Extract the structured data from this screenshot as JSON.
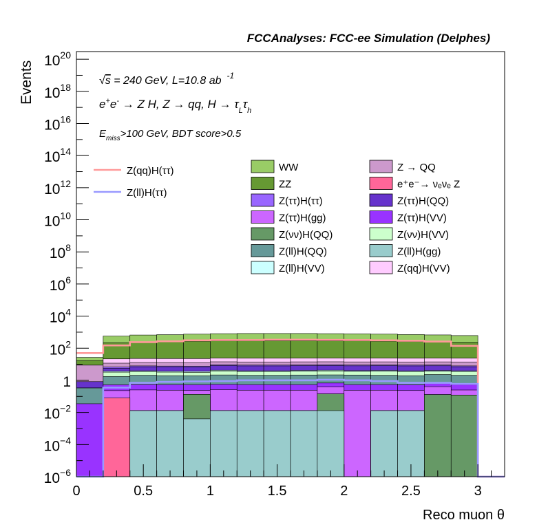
{
  "chart_data": {
    "type": "histogram-stack-log",
    "title": "FCCAnalyses: FCC-ee Simulation (Delphes)",
    "xlabel": "Reco muon θ",
    "ylabel": "Events",
    "xlim": [
      0,
      3.2
    ],
    "ylim": [
      1e-06,
      3e+20
    ],
    "ylog": true,
    "x_ticks": [
      {
        "v": 0,
        "label": "0"
      },
      {
        "v": 0.5,
        "label": "0.5"
      },
      {
        "v": 1,
        "label": "1"
      },
      {
        "v": 1.5,
        "label": "1.5"
      },
      {
        "v": 2,
        "label": "2"
      },
      {
        "v": 2.5,
        "label": "2.5"
      },
      {
        "v": 3,
        "label": "3"
      }
    ],
    "y_ticks": [
      {
        "v": 1e-06,
        "base": "10",
        "exp": "−6"
      },
      {
        "v": 0.0001,
        "base": "10",
        "exp": "−4"
      },
      {
        "v": 0.01,
        "base": "10",
        "exp": "−2"
      },
      {
        "v": 1,
        "base": "1",
        "exp": ""
      },
      {
        "v": 100.0,
        "base": "10",
        "exp": "2"
      },
      {
        "v": 10000.0,
        "base": "10",
        "exp": "4"
      },
      {
        "v": 1000000.0,
        "base": "10",
        "exp": "6"
      },
      {
        "v": 100000000.0,
        "base": "10",
        "exp": "8"
      },
      {
        "v": 10000000000.0,
        "base": "10",
        "exp": "10"
      },
      {
        "v": 1000000000000.0,
        "base": "10",
        "exp": "12"
      },
      {
        "v": 100000000000000.0,
        "base": "10",
        "exp": "14"
      },
      {
        "v": 1e+16,
        "base": "10",
        "exp": "16"
      },
      {
        "v": 1e+18,
        "base": "10",
        "exp": "18"
      },
      {
        "v": 1e+20,
        "base": "10",
        "exp": "20"
      }
    ],
    "annotations": {
      "energy_pre": "√",
      "energy_s": "s",
      "energy_rest": " = 240 GeV, L=10.8 ab",
      "energy_exp": "-1",
      "process_a": "e",
      "process_a_sup": "+",
      "process_b": "e",
      "process_b_sup": "-",
      "process_rest": " → Z H, Z  → qq, H  → τ",
      "process_tau_l_sub": "L",
      "process_tau_h": "τ",
      "process_tau_h_sub": "h",
      "cut_e": "E",
      "cut_sub": "miss",
      "cut_rest": ">100 GeV, BDT score>0.5"
    },
    "bin_edges": [
      0,
      0.2,
      0.4,
      0.6,
      0.8,
      1.0,
      1.2,
      1.4,
      1.6,
      1.8,
      2.0,
      2.2,
      2.4,
      2.6,
      2.8,
      3.0,
      3.2
    ],
    "stack": [
      {
        "name": "Z(ll)H(gg)",
        "color": "#99cccc",
        "values": [
          0,
          0,
          0.013,
          0.013,
          0.004,
          0.013,
          0.013,
          0.013,
          0.013,
          0.013,
          0,
          0.013,
          0.013,
          0,
          0,
          0
        ]
      },
      {
        "name": "Z(νν)H(QQ)",
        "color": "#669966",
        "values": [
          0,
          0,
          0,
          0,
          0.13,
          0,
          0,
          0,
          0,
          0.13,
          0,
          0,
          0,
          0.13,
          0.12,
          0
        ]
      },
      {
        "name": "e⁺e⁻→ νₑνₑ Z",
        "color": "#ff6699",
        "values": [
          0,
          0.08,
          0,
          0,
          0,
          0,
          0,
          0,
          0,
          0,
          0,
          0,
          0,
          0,
          0,
          0
        ]
      },
      {
        "name": "Z(ττ)H(gg)",
        "color": "#cc66ff",
        "values": [
          1e-06,
          0.15,
          0.24,
          0.23,
          0.1,
          0.25,
          0.23,
          0.23,
          0.23,
          0.24,
          0.24,
          0.23,
          0.22,
          0.27,
          0.13,
          0
        ]
      },
      {
        "name": "Z(ττ)H(VV)",
        "color": "#9933ff",
        "values": [
          0.035,
          0.3,
          0.3,
          0.3,
          0.3,
          0.3,
          0.3,
          0.3,
          0.3,
          0.3,
          0.3,
          0.3,
          0.3,
          0.3,
          0.3,
          0
        ]
      },
      {
        "name": "Z(ll)H(QQ)",
        "color": "#669999",
        "values": [
          0.3,
          1.2,
          1.5,
          1.4,
          1.4,
          1.6,
          1.5,
          1.5,
          1.6,
          1.5,
          1.6,
          1.5,
          1.4,
          1.6,
          1.5,
          0
        ]
      },
      {
        "name": "Z(νν)H(VV)",
        "color": "#ccffcc",
        "values": [
          0,
          1.5,
          1.4,
          1.3,
          1.2,
          1.6,
          1.4,
          1.4,
          1.5,
          1.6,
          1.4,
          1.6,
          1.5,
          1.3,
          1.4,
          0
        ]
      },
      {
        "name": "Z(ll)H(VV)",
        "color": "#ccffff",
        "values": [
          0,
          0.5,
          0.5,
          0.5,
          0.5,
          0.5,
          0.5,
          0.5,
          0.5,
          0.5,
          0.5,
          0.5,
          0.5,
          0.5,
          0.5,
          0
        ]
      },
      {
        "name": "Z(ττ)H(QQ)",
        "color": "#6633cc",
        "values": [
          0.5,
          2,
          3,
          3,
          3,
          4,
          4,
          4,
          4,
          4,
          4,
          4,
          4,
          4,
          3,
          0
        ]
      },
      {
        "name": "Z(ττ)H(ττ)",
        "color": "#9966ff",
        "values": [
          0,
          1,
          1,
          1,
          1,
          1,
          1,
          1,
          1,
          1,
          1,
          1,
          1,
          1,
          1,
          0
        ]
      },
      {
        "name": "Z → QQ",
        "color": "#cc99cc",
        "values": [
          8,
          5,
          5,
          5,
          5,
          5,
          5,
          5,
          5,
          5,
          5,
          5,
          5,
          5,
          6,
          0
        ]
      },
      {
        "name": "Z(qq)H(VV)",
        "color": "#ffccff",
        "values": [
          0,
          10,
          10,
          10,
          10,
          10,
          10,
          10,
          10,
          10,
          10,
          10,
          10,
          10,
          10,
          0
        ]
      },
      {
        "name": "ZZ",
        "color": "#669933",
        "values": [
          8,
          200,
          220,
          230,
          250,
          260,
          260,
          260,
          260,
          260,
          260,
          250,
          240,
          230,
          210,
          0
        ]
      },
      {
        "name": "WW",
        "color": "#99cc66",
        "values": [
          10,
          350,
          420,
          450,
          480,
          520,
          540,
          540,
          540,
          520,
          500,
          480,
          450,
          420,
          380,
          0
        ]
      }
    ],
    "lines": [
      {
        "name": "Z(qq)H(ττ)",
        "color": "#ff9999",
        "values": [
          50,
          150,
          240,
          270,
          310,
          320,
          320,
          340,
          340,
          330,
          320,
          310,
          290,
          260,
          140,
          0
        ]
      },
      {
        "name": "Z(ll)H(ττ)",
        "color": "#9999ff",
        "values": [
          1e-06,
          0.35,
          0.7,
          0.8,
          0.85,
          0.9,
          1.0,
          1.0,
          1.0,
          1.1,
          1.0,
          0.9,
          0.7,
          0.7,
          0.6,
          0
        ]
      }
    ],
    "legend_lines": [
      "Z(qq)H(ττ)",
      "Z(ll)H(ττ)"
    ],
    "legend_left": [
      "WW",
      "ZZ",
      "Z(ττ)H(ττ)",
      "Z(ττ)H(gg)",
      "Z(νν)H(QQ)",
      "Z(ll)H(QQ)",
      "Z(ll)H(VV)"
    ],
    "legend_right": [
      "Z → QQ",
      "e⁺e⁻→ νₑνₑ Z",
      "Z(ττ)H(QQ)",
      "Z(ττ)H(VV)",
      "Z(νν)H(VV)",
      "Z(ll)H(gg)",
      "Z(qq)H(VV)"
    ]
  }
}
